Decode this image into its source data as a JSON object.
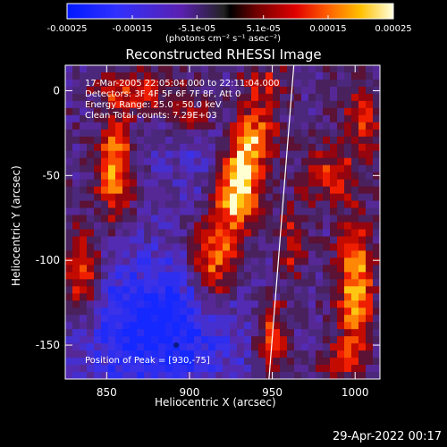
{
  "chart_data": {
    "type": "heatmap",
    "title": "Reconstructed RHESSI Image",
    "xlabel": "Heliocentric X (arcsec)",
    "ylabel": "Heliocentric Y (arcsec)",
    "xlim": [
      825,
      1015
    ],
    "ylim": [
      -170,
      15
    ],
    "x_ticks": [
      "850",
      "900",
      "950",
      "1000"
    ],
    "x_tick_values": [
      850,
      900,
      950,
      1000
    ],
    "y_ticks": [
      "0",
      "-50",
      "-100",
      "-150"
    ],
    "y_tick_values": [
      0,
      -50,
      -100,
      -150
    ],
    "colorbar": {
      "range": [
        -0.00025,
        0.00025
      ],
      "tick_labels": [
        "-0.00025",
        "-0.00015",
        "-5.1e-05",
        "5.1e-05",
        "0.00015",
        "0.00025"
      ],
      "tick_values": [
        -0.00025,
        -0.00015,
        -5.1e-05,
        5.1e-05,
        0.00015,
        0.00025
      ],
      "units": "(photons cm⁻² s⁻¹ asec⁻²)"
    },
    "annotations": [
      "17-Mar-2005 22:05:04.000 to 22:11:04.000",
      "Detectors: 3F 4F 5F 6F 7F 8F, Att 0",
      "Energy Range: 25.0 - 50.0 keV",
      "Clean    Total counts: 7.29E+03"
    ],
    "peak_label": "Position of Peak = [930,-75]",
    "peak": [
      930,
      -75
    ],
    "limb_line": [
      [
        963,
        15
      ],
      [
        948,
        -170
      ]
    ],
    "sources": [
      {
        "x": 855,
        "y": -45,
        "sx": 7,
        "sy": 22,
        "amp": 1.0
      },
      {
        "x": 835,
        "y": -110,
        "sx": 8,
        "sy": 20,
        "amp": 0.85
      },
      {
        "x": 870,
        "y": 0,
        "sx": 18,
        "sy": 8,
        "amp": 0.6
      },
      {
        "x": 900,
        "y": -15,
        "sx": 10,
        "sy": 10,
        "amp": 0.55
      },
      {
        "x": 930,
        "y": -55,
        "sx": 9,
        "sy": 18,
        "amp": 1.3
      },
      {
        "x": 915,
        "y": -100,
        "sx": 10,
        "sy": 20,
        "amp": 1.0
      },
      {
        "x": 940,
        "y": -25,
        "sx": 10,
        "sy": 14,
        "amp": 0.75
      },
      {
        "x": 950,
        "y": -145,
        "sx": 7,
        "sy": 15,
        "amp": 0.8
      },
      {
        "x": 962,
        "y": -90,
        "sx": 6,
        "sy": 14,
        "amp": 0.55
      },
      {
        "x": 985,
        "y": -50,
        "sx": 12,
        "sy": 12,
        "amp": 0.6
      },
      {
        "x": 1000,
        "y": -115,
        "sx": 8,
        "sy": 26,
        "amp": 1.0
      },
      {
        "x": 1005,
        "y": -15,
        "sx": 8,
        "sy": 14,
        "amp": 0.6
      },
      {
        "x": 990,
        "y": -160,
        "sx": 10,
        "sy": 8,
        "amp": 0.45
      },
      {
        "x": 945,
        "y": 5,
        "sx": 10,
        "sy": 7,
        "amp": 0.5
      }
    ]
  }
}
